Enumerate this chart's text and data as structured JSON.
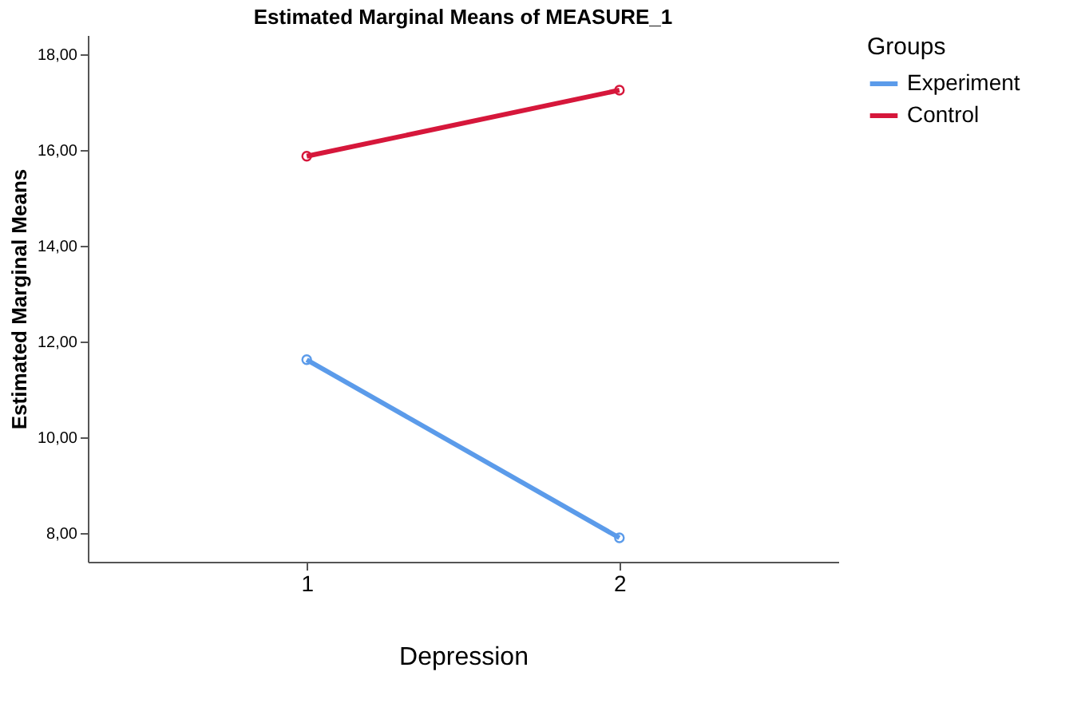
{
  "chart_data": {
    "type": "line",
    "title": "Estimated Marginal Means of MEASURE_1",
    "xlabel": "Depression",
    "ylabel": "Estimated Marginal Means",
    "legend_title": "Groups",
    "categories": [
      "1",
      "2"
    ],
    "series": [
      {
        "name": "Experiment",
        "color": "#5b9bea",
        "values": [
          11.62,
          7.9
        ]
      },
      {
        "name": "Control",
        "color": "#d6173b",
        "values": [
          15.87,
          17.25
        ]
      }
    ],
    "ylim": [
      7.4,
      18.4
    ],
    "yticks": [
      {
        "value": 8,
        "label": "8,00"
      },
      {
        "value": 10,
        "label": "10,00"
      },
      {
        "value": 12,
        "label": "12,00"
      },
      {
        "value": 14,
        "label": "14,00"
      },
      {
        "value": 16,
        "label": "16,00"
      },
      {
        "value": 18,
        "label": "18,00"
      }
    ],
    "grid": false,
    "legend": "top right",
    "marker": "circle",
    "line_style": "solid"
  }
}
